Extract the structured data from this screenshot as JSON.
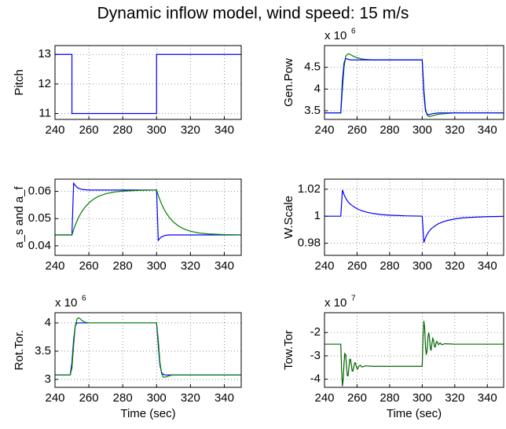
{
  "title": "Dynamic inflow model, wind speed: 15 m/s",
  "chart_data": [
    {
      "type": "line",
      "ylabel": "Pitch",
      "grid": true,
      "x": [
        240,
        250,
        250,
        300,
        300,
        350
      ],
      "xlim": [
        240,
        350
      ],
      "xticks": [
        240,
        260,
        280,
        300,
        320,
        340
      ],
      "ylim": [
        10.8,
        13.3
      ],
      "yticks": [
        11,
        12,
        13
      ],
      "series": [
        {
          "color": "#0000ff",
          "values": [
            13,
            13,
            11,
            11,
            13,
            13
          ]
        }
      ]
    },
    {
      "type": "line",
      "ylabel": "Gen.Pow",
      "multiplier": {
        "base": "x 10",
        "exponent": "6"
      },
      "grid": true,
      "x": [
        240,
        245,
        249,
        250,
        251,
        252,
        253,
        254,
        255,
        256,
        258,
        260,
        263,
        266,
        270,
        275,
        280,
        290,
        299,
        300,
        301,
        302,
        303,
        304,
        305,
        306,
        308,
        310,
        313,
        316,
        320,
        325,
        330,
        340,
        350
      ],
      "xlim": [
        240,
        350
      ],
      "xticks": [
        240,
        260,
        280,
        300,
        320,
        340
      ],
      "ylim": [
        3.3,
        5.0
      ],
      "yticks": [
        3.5,
        4,
        4.5
      ],
      "series": [
        {
          "color": "#008000",
          "values": [
            3.45,
            3.45,
            3.45,
            3.45,
            4.0,
            4.5,
            4.75,
            4.8,
            4.81,
            4.79,
            4.75,
            4.72,
            4.69,
            4.68,
            4.67,
            4.67,
            4.67,
            4.67,
            4.67,
            4.67,
            4.0,
            3.55,
            3.4,
            3.37,
            3.37,
            3.38,
            3.4,
            3.42,
            3.43,
            3.44,
            3.45,
            3.45,
            3.45,
            3.45,
            3.45
          ]
        },
        {
          "color": "#0000ff",
          "values": [
            3.45,
            3.45,
            3.45,
            3.45,
            4.2,
            4.6,
            4.7,
            4.69,
            4.68,
            4.67,
            4.67,
            4.67,
            4.67,
            4.67,
            4.67,
            4.67,
            4.67,
            4.67,
            4.67,
            4.67,
            3.9,
            3.5,
            3.42,
            3.41,
            3.42,
            3.43,
            3.44,
            3.45,
            3.45,
            3.45,
            3.45,
            3.45,
            3.45,
            3.45,
            3.45
          ]
        }
      ]
    },
    {
      "type": "line",
      "ylabel": "a_s and a_f",
      "grid": true,
      "x": [
        240,
        245,
        249,
        250,
        251,
        252,
        253,
        254,
        255,
        256,
        258,
        260,
        263,
        266,
        270,
        275,
        280,
        290,
        299,
        300,
        301,
        302,
        303,
        304,
        305,
        306,
        308,
        310,
        313,
        316,
        320,
        325,
        330,
        340,
        350
      ],
      "xlim": [
        240,
        350
      ],
      "xticks": [
        240,
        260,
        280,
        300,
        320,
        340
      ],
      "ylim": [
        0.0365,
        0.0645
      ],
      "yticks": [
        0.04,
        0.05,
        0.06
      ],
      "series": [
        {
          "color": "#0000ff",
          "values": [
            0.044,
            0.044,
            0.044,
            0.044,
            0.063,
            0.0622,
            0.0615,
            0.0611,
            0.0609,
            0.0607,
            0.0606,
            0.0605,
            0.0605,
            0.0605,
            0.0605,
            0.0605,
            0.0605,
            0.0605,
            0.0605,
            0.0605,
            0.042,
            0.0428,
            0.0433,
            0.0436,
            0.0438,
            0.0439,
            0.044,
            0.044,
            0.044,
            0.044,
            0.044,
            0.044,
            0.044,
            0.044,
            0.044
          ]
        },
        {
          "color": "#008000",
          "values": [
            0.044,
            0.044,
            0.044,
            0.044,
            0.04595,
            0.04765,
            0.04916,
            0.05049,
            0.05167,
            0.05271,
            0.05443,
            0.05576,
            0.05725,
            0.05827,
            0.05915,
            0.05977,
            0.0601,
            0.06039,
            0.06047,
            0.0605,
            0.05856,
            0.05685,
            0.05534,
            0.05401,
            0.05283,
            0.05179,
            0.05007,
            0.04873,
            0.04725,
            0.04623,
            0.04535,
            0.04473,
            0.0444,
            0.04411,
            0.04402
          ]
        }
      ]
    },
    {
      "type": "line",
      "ylabel": "W.Scale",
      "grid": true,
      "x": [
        240,
        245,
        249,
        250,
        251,
        252,
        253,
        254,
        255,
        256,
        258,
        260,
        263,
        266,
        270,
        275,
        280,
        290,
        299,
        300,
        301,
        302,
        303,
        304,
        305,
        306,
        308,
        310,
        313,
        316,
        320,
        325,
        330,
        340,
        350
      ],
      "xlim": [
        240,
        350
      ],
      "xticks": [
        240,
        260,
        280,
        300,
        320,
        340
      ],
      "ylim": [
        0.971,
        1.0275
      ],
      "yticks": [
        0.98,
        1,
        1.02
      ],
      "series": [
        {
          "color": "#0000ff",
          "values": [
            1,
            1,
            1,
            1,
            1.0195,
            1.016,
            1.0135,
            1.0115,
            1.01,
            1.0088,
            1.007,
            1.0055,
            1.004,
            1.003,
            1.002,
            1.0012,
            1.0008,
            1.0003,
            1.0001,
            1,
            0.9805,
            0.984,
            0.9865,
            0.9885,
            0.99,
            0.9912,
            0.993,
            0.9945,
            0.996,
            0.997,
            0.998,
            0.9988,
            0.9992,
            0.9997,
            0.9999
          ]
        }
      ]
    },
    {
      "type": "line",
      "ylabel": "Rot.Tor.",
      "xlabel": "Time (sec)",
      "multiplier": {
        "base": "x 10",
        "exponent": "6"
      },
      "grid": true,
      "x": [
        240,
        245,
        249,
        250,
        251,
        252,
        253,
        254,
        255,
        256,
        258,
        260,
        263,
        266,
        270,
        275,
        280,
        290,
        299,
        300,
        301,
        302,
        303,
        304,
        305,
        306,
        308,
        310,
        313,
        316,
        320,
        325,
        330,
        340,
        350
      ],
      "xlim": [
        240,
        350
      ],
      "xticks": [
        240,
        260,
        280,
        300,
        320,
        340
      ],
      "ylim": [
        2.86,
        4.18
      ],
      "yticks": [
        3,
        3.5,
        4
      ],
      "series": [
        {
          "color": "#0000ff",
          "values": [
            3.08,
            3.08,
            3.08,
            3.3,
            3.7,
            3.95,
            4.0,
            4.0,
            4.0,
            4.0,
            4.0,
            4.0,
            4.0,
            4.0,
            4.0,
            4.0,
            4.0,
            4.0,
            4.0,
            4.0,
            3.6,
            3.25,
            3.12,
            3.09,
            3.08,
            3.08,
            3.08,
            3.08,
            3.08,
            3.08,
            3.08,
            3.08,
            3.08,
            3.08,
            3.08
          ]
        },
        {
          "color": "#008000",
          "values": [
            3.08,
            3.08,
            3.08,
            3.2,
            3.6,
            3.95,
            4.07,
            4.09,
            4.07,
            4.04,
            4.01,
            4.0,
            4.0,
            4.0,
            4.0,
            4.0,
            4.0,
            4.0,
            4.0,
            4.0,
            3.7,
            3.3,
            3.1,
            3.04,
            3.04,
            3.05,
            3.07,
            3.08,
            3.08,
            3.08,
            3.08,
            3.08,
            3.08,
            3.08,
            3.08
          ]
        }
      ]
    },
    {
      "type": "line",
      "ylabel": "Tow.Tor",
      "xlabel": "Time (sec)",
      "multiplier": {
        "base": "x 10",
        "exponent": "7"
      },
      "grid": true,
      "x": [
        240,
        249,
        250,
        250.5,
        251,
        251.5,
        252,
        252.5,
        253,
        253.5,
        254,
        254.5,
        255,
        255.5,
        256,
        256.5,
        257,
        257.5,
        258,
        258.5,
        259,
        259.5,
        260,
        260.5,
        261,
        262,
        263,
        265,
        270,
        299,
        300,
        300.5,
        301,
        301.5,
        302,
        302.5,
        303,
        303.5,
        304,
        304.5,
        305,
        305.5,
        306,
        306.5,
        307,
        307.5,
        308,
        308.5,
        309,
        310,
        311,
        312,
        314,
        320,
        350
      ],
      "xlim": [
        240,
        350
      ],
      "xticks": [
        240,
        260,
        280,
        300,
        320,
        340
      ],
      "ylim": [
        -4.35,
        -1.15
      ],
      "yticks": [
        -2,
        -3,
        -4
      ],
      "series": [
        {
          "color": "#006400",
          "values": [
            -2.5,
            -2.5,
            -2.5,
            -3.6,
            -4.3,
            -4.0,
            -3.3,
            -2.9,
            -2.95,
            -3.4,
            -3.85,
            -3.85,
            -3.5,
            -3.15,
            -3.15,
            -3.4,
            -3.65,
            -3.65,
            -3.45,
            -3.3,
            -3.3,
            -3.45,
            -3.55,
            -3.55,
            -3.45,
            -3.4,
            -3.48,
            -3.43,
            -3.45,
            -3.45,
            -3.45,
            -2.2,
            -1.5,
            -1.8,
            -2.6,
            -2.95,
            -2.75,
            -2.2,
            -2.0,
            -2.25,
            -2.7,
            -2.75,
            -2.45,
            -2.25,
            -2.35,
            -2.6,
            -2.62,
            -2.45,
            -2.38,
            -2.52,
            -2.45,
            -2.52,
            -2.48,
            -2.5,
            -2.5
          ]
        }
      ]
    }
  ]
}
